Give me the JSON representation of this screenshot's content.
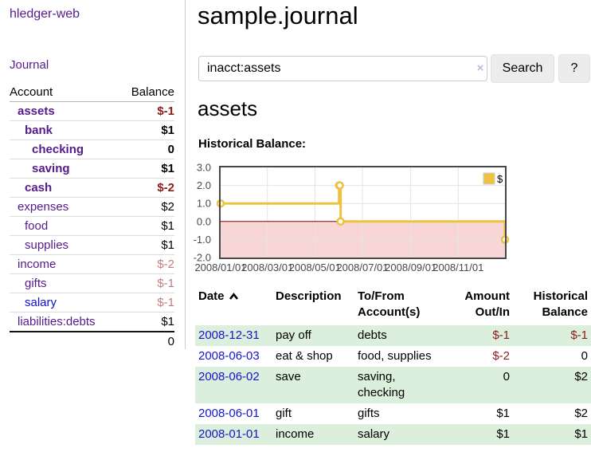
{
  "app": {
    "title": "hledger-web",
    "nav": {
      "journal": "Journal"
    }
  },
  "sidebar": {
    "header": {
      "account": "Account",
      "balance": "Balance"
    },
    "accounts": [
      {
        "name": "assets",
        "depth": 1,
        "balance": "$-1",
        "bold": true,
        "balance_style": "neg-strong",
        "link_color": "purple"
      },
      {
        "name": "bank",
        "depth": 2,
        "balance": "$1",
        "bold": true,
        "balance_style": "",
        "link_color": "purple"
      },
      {
        "name": "checking",
        "depth": 3,
        "balance": "0",
        "bold": true,
        "balance_style": "",
        "link_color": "purple"
      },
      {
        "name": "saving",
        "depth": 3,
        "balance": "$1",
        "bold": true,
        "balance_style": "",
        "link_color": "purple"
      },
      {
        "name": "cash",
        "depth": 2,
        "balance": "$-2",
        "bold": true,
        "balance_style": "neg-strong",
        "link_color": "purple"
      },
      {
        "name": "expenses",
        "depth": 1,
        "balance": "$2",
        "bold": false,
        "balance_style": "",
        "link_color": "purple"
      },
      {
        "name": "food",
        "depth": 2,
        "balance": "$1",
        "bold": false,
        "balance_style": "",
        "link_color": "purple"
      },
      {
        "name": "supplies",
        "depth": 2,
        "balance": "$1",
        "bold": false,
        "balance_style": "",
        "link_color": "purple"
      },
      {
        "name": "income",
        "depth": 1,
        "balance": "$-2",
        "bold": false,
        "balance_style": "neg-muted",
        "link_color": "purple"
      },
      {
        "name": "gifts",
        "depth": 2,
        "balance": "$-1",
        "bold": false,
        "balance_style": "neg-muted",
        "link_color": "purple"
      },
      {
        "name": "salary",
        "depth": 2,
        "balance": "$-1",
        "bold": false,
        "balance_style": "neg-muted",
        "link_color": "blue"
      },
      {
        "name": "liabilities:debts",
        "depth": 1,
        "balance": "$1",
        "bold": false,
        "balance_style": "",
        "link_color": "purple"
      }
    ],
    "total": "0"
  },
  "page": {
    "title": "sample.journal",
    "account_heading": "assets",
    "chart_label": "Historical Balance:"
  },
  "search": {
    "value": "inacct:assets",
    "clear_icon": "×",
    "search_button": "Search",
    "help_button": "?"
  },
  "chart_data": {
    "type": "line",
    "step": true,
    "title": "Historical Balance",
    "x_range": [
      "2008-01-01",
      "2008-12-31"
    ],
    "ylim": [
      -2,
      3
    ],
    "grid": true,
    "legend_position": "top-right",
    "series": [
      {
        "name": "$",
        "color": "#EDC240",
        "points": [
          [
            "2008-01-01",
            1
          ],
          [
            "2008-06-01",
            2
          ],
          [
            "2008-06-02",
            2
          ],
          [
            "2008-06-03",
            0
          ],
          [
            "2008-12-31",
            -1
          ]
        ]
      }
    ],
    "yticks": [
      {
        "value": 3,
        "label": "3.0"
      },
      {
        "value": 2,
        "label": "2.0"
      },
      {
        "value": 1,
        "label": "1.0"
      },
      {
        "value": 0,
        "label": "0.0"
      },
      {
        "value": -1,
        "label": "-1.0"
      },
      {
        "value": -2,
        "label": "-2.0"
      }
    ],
    "xticks": [
      {
        "date": "2008-01-01",
        "label": "2008/01/01"
      },
      {
        "date": "2008-03-01",
        "label": "2008/03/01"
      },
      {
        "date": "2008-05-01",
        "label": "2008/05/01"
      },
      {
        "date": "2008-07-01",
        "label": "2008/07/01"
      },
      {
        "date": "2008-09-01",
        "label": "2008/09/01"
      },
      {
        "date": "2008-11-01",
        "label": "2008/11/01"
      }
    ],
    "negative_fill": "#f9d6d6",
    "zero_line_color": "#8b0000",
    "border_color": "#474747",
    "grid_color": "#e4e4e4"
  },
  "register": {
    "headers": {
      "date": "Date",
      "description": "Description",
      "tofrom": "To/From Account(s)",
      "amount": "Amount Out/In",
      "balance": "Historical Balance"
    },
    "sort": "ascending",
    "rows": [
      {
        "date": "2008-12-31",
        "description": "pay off",
        "accounts": "debts",
        "amount": "$-1",
        "amount_negative": true,
        "balance": "$-1",
        "balance_negative": true
      },
      {
        "date": "2008-06-03",
        "description": "eat & shop",
        "accounts": "food, supplies",
        "amount": "$-2",
        "amount_negative": true,
        "balance": "0",
        "balance_negative": false
      },
      {
        "date": "2008-06-02",
        "description": "save",
        "accounts": "saving, checking",
        "amount": "0",
        "amount_negative": false,
        "balance": "$2",
        "balance_negative": false
      },
      {
        "date": "2008-06-01",
        "description": "gift",
        "accounts": "gifts",
        "amount": "$1",
        "amount_negative": false,
        "balance": "$2",
        "balance_negative": false
      },
      {
        "date": "2008-01-01",
        "description": "income",
        "accounts": "salary",
        "amount": "$1",
        "amount_negative": false,
        "balance": "$1",
        "balance_negative": false
      }
    ]
  }
}
